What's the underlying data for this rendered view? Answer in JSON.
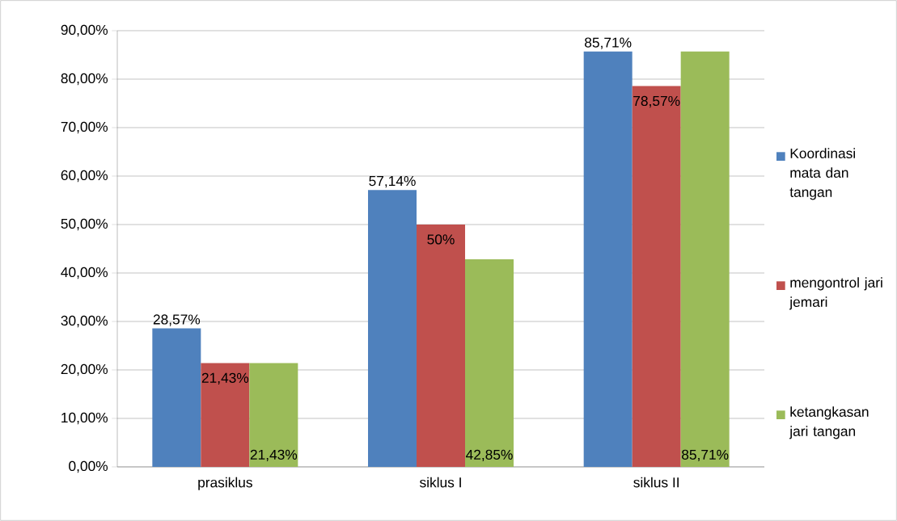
{
  "chart_data": {
    "type": "bar",
    "categories": [
      "prasiklus",
      "siklus I",
      "siklus II"
    ],
    "series": [
      {
        "name": "Koordinasi mata dan tangan",
        "color": "#4f81bd",
        "values": [
          28.57,
          57.14,
          85.71
        ],
        "value_labels": [
          "28,57%",
          "57,14%",
          "85,71%"
        ]
      },
      {
        "name": "mengontrol jari jemari",
        "color": "#c0504d",
        "values": [
          21.43,
          50,
          78.57
        ],
        "value_labels": [
          "21,43%",
          "50%",
          "78,57%"
        ]
      },
      {
        "name": "ketangkasan jari tangan",
        "color": "#9bbb59",
        "values": [
          21.43,
          42.85,
          85.71
        ],
        "value_labels": [
          "21,43%",
          "42,85%",
          "85,71%"
        ]
      }
    ],
    "ylim": [
      0,
      90
    ],
    "yticks": [
      {
        "value": 0,
        "label": "0,00%"
      },
      {
        "value": 10,
        "label": "10,00%"
      },
      {
        "value": 20,
        "label": "20,00%"
      },
      {
        "value": 30,
        "label": "30,00%"
      },
      {
        "value": 40,
        "label": "40,00%"
      },
      {
        "value": 50,
        "label": "50,00%"
      },
      {
        "value": 60,
        "label": "60,00%"
      },
      {
        "value": 70,
        "label": "70,00%"
      },
      {
        "value": 80,
        "label": "80,00%"
      },
      {
        "value": 90,
        "label": "90,00%"
      }
    ],
    "grid": "y",
    "legend": "right"
  }
}
